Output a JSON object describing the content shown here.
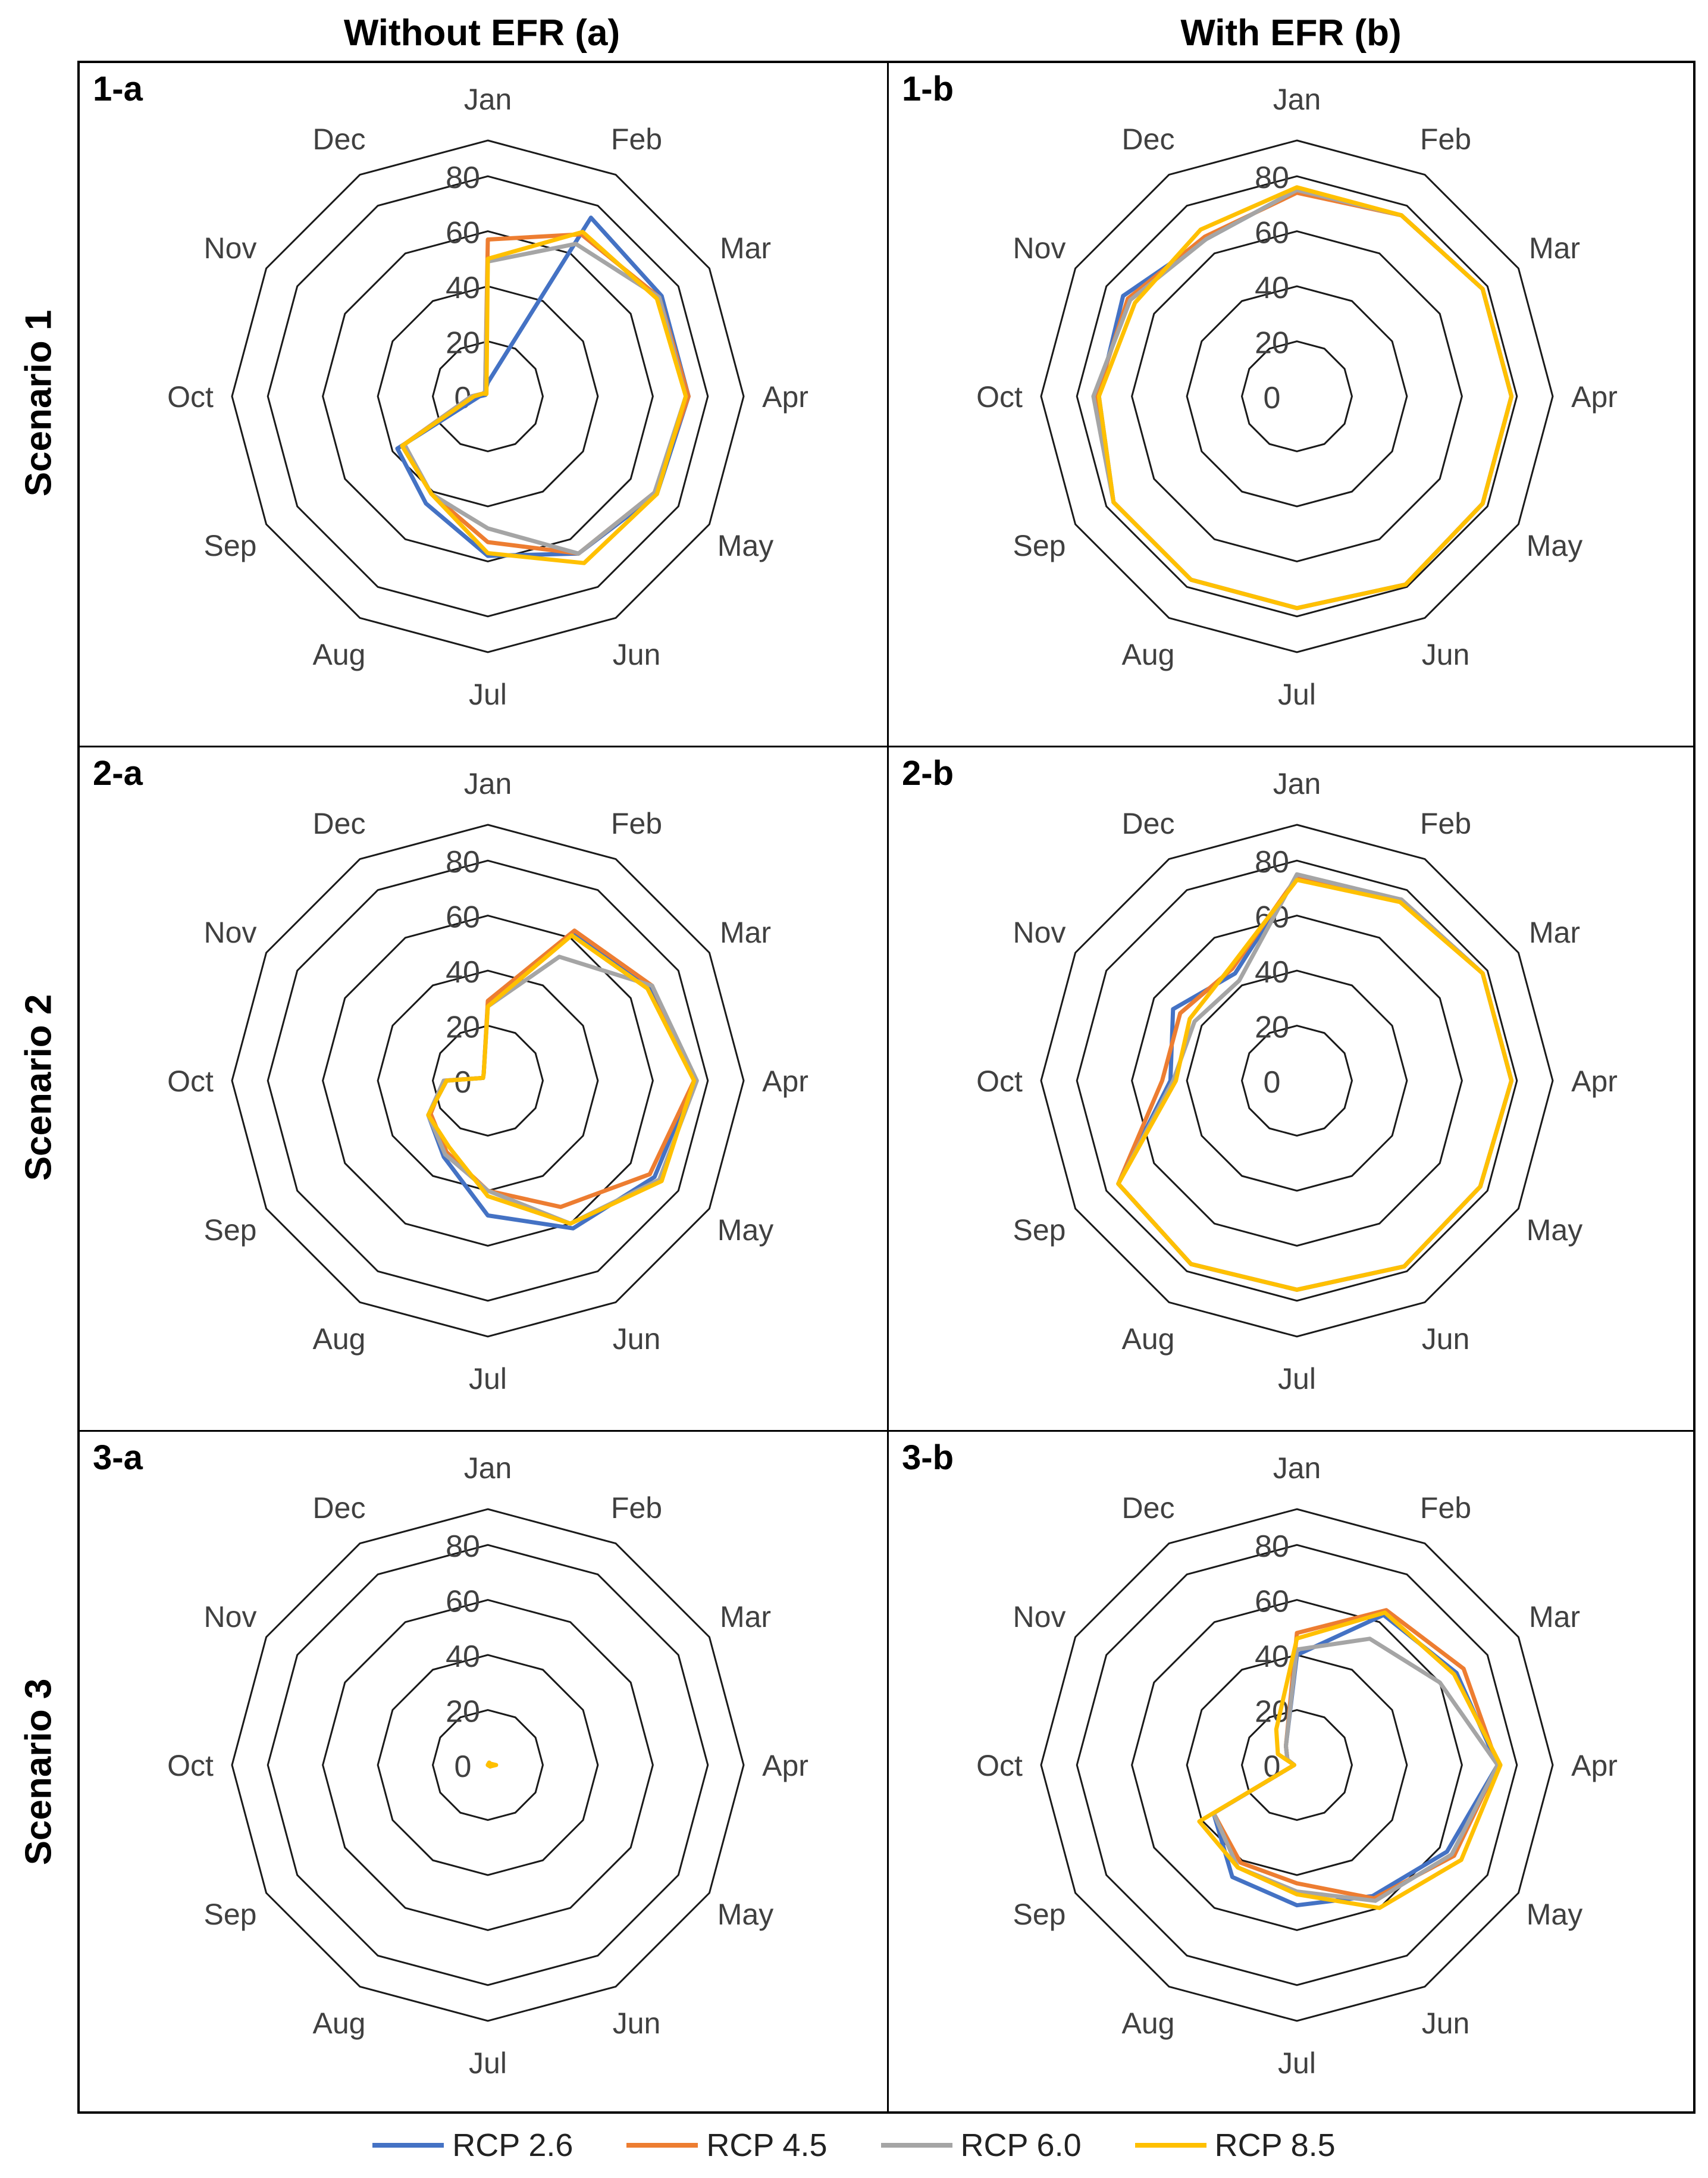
{
  "headers": {
    "col_a": "Without EFR (a)",
    "col_b": "With EFR (b)",
    "rows": [
      "Scenario 1",
      "Scenario 2",
      "Scenario 3"
    ]
  },
  "legend": [
    {
      "name": "RCP 2.6",
      "color": "#4472C4"
    },
    {
      "name": "RCP 4.5",
      "color": "#ED7D31"
    },
    {
      "name": "RCP 6.0",
      "color": "#A5A5A5"
    },
    {
      "name": "RCP 8.5",
      "color": "#FFC000"
    }
  ],
  "chart_data": [
    {
      "panel": "1-a",
      "type": "radar",
      "categories": [
        "Jan",
        "Feb",
        "Mar",
        "Apr",
        "May",
        "Jun",
        "Jul",
        "Aug",
        "Sep",
        "Oct",
        "Nov",
        "Dec"
      ],
      "rlim": [
        0,
        80
      ],
      "ticks": [
        0,
        20,
        40,
        60,
        80
      ],
      "series": [
        {
          "name": "RCP 2.6",
          "values": [
            5,
            75,
            73,
            73,
            71,
            66,
            58,
            45,
            38,
            3,
            1,
            2
          ]
        },
        {
          "name": "RCP 4.5",
          "values": [
            57,
            68,
            72,
            73,
            70,
            66,
            53,
            41,
            36,
            6,
            2,
            2
          ]
        },
        {
          "name": "RCP 6.0",
          "values": [
            49,
            64,
            72,
            72,
            70,
            66,
            48,
            41,
            35,
            6,
            2,
            2
          ]
        },
        {
          "name": "RCP 8.5",
          "values": [
            50,
            69,
            71,
            72,
            71,
            70,
            57,
            41,
            36,
            5,
            2,
            1
          ]
        }
      ]
    },
    {
      "panel": "1-b",
      "type": "radar",
      "categories": [
        "Jan",
        "Feb",
        "Mar",
        "Apr",
        "May",
        "Jun",
        "Jul",
        "Aug",
        "Sep",
        "Oct",
        "Nov",
        "Dec"
      ],
      "rlim": [
        0,
        80
      ],
      "ticks": [
        0,
        20,
        40,
        60,
        80
      ],
      "series": [
        {
          "name": "RCP 2.6",
          "values": [
            75,
            76,
            78,
            78,
            78,
            79,
            77,
            77,
            77,
            72,
            73,
            66
          ]
        },
        {
          "name": "RCP 4.5",
          "values": [
            74,
            76,
            78,
            78,
            78,
            79,
            77,
            77,
            77,
            73,
            71,
            67
          ]
        },
        {
          "name": "RCP 6.0",
          "values": [
            75,
            76,
            78,
            78,
            78,
            79,
            77,
            77,
            77,
            74,
            70,
            66
          ]
        },
        {
          "name": "RCP 8.5",
          "values": [
            76,
            76,
            78,
            78,
            78,
            79,
            77,
            77,
            77,
            72,
            68,
            70
          ]
        }
      ]
    },
    {
      "panel": "2-a",
      "type": "radar",
      "categories": [
        "Jan",
        "Feb",
        "Mar",
        "Apr",
        "May",
        "Jun",
        "Jul",
        "Aug",
        "Sep",
        "Oct",
        "Nov",
        "Dec"
      ],
      "rlim": [
        0,
        80
      ],
      "ticks": [
        0,
        20,
        40,
        60,
        80
      ],
      "series": [
        {
          "name": "RCP 2.6",
          "values": [
            28,
            62,
            68,
            75,
            70,
            62,
            49,
            32,
            25,
            15,
            2,
            3
          ]
        },
        {
          "name": "RCP 4.5",
          "values": [
            29,
            63,
            69,
            75,
            68,
            53,
            40,
            30,
            24,
            16,
            2,
            3
          ]
        },
        {
          "name": "RCP 6.0",
          "values": [
            27,
            52,
            69,
            76,
            72,
            60,
            40,
            31,
            25,
            16,
            2,
            3
          ]
        },
        {
          "name": "RCP 8.5",
          "values": [
            27,
            61,
            67,
            75,
            73,
            60,
            42,
            28,
            25,
            15,
            2,
            3
          ]
        }
      ]
    },
    {
      "panel": "2-b",
      "type": "radar",
      "categories": [
        "Jan",
        "Feb",
        "Mar",
        "Apr",
        "May",
        "Jun",
        "Jul",
        "Aug",
        "Sep",
        "Oct",
        "Nov",
        "Dec"
      ],
      "rlim": [
        0,
        80
      ],
      "ticks": [
        0,
        20,
        40,
        60,
        80
      ],
      "series": [
        {
          "name": "RCP 2.6",
          "values": [
            74,
            76,
            78,
            78,
            77,
            78,
            76,
            77,
            75,
            46,
            52,
            45
          ]
        },
        {
          "name": "RCP 4.5",
          "values": [
            74,
            76,
            78,
            78,
            77,
            78,
            76,
            77,
            75,
            49,
            49,
            47
          ]
        },
        {
          "name": "RCP 6.0",
          "values": [
            75,
            76,
            78,
            78,
            77,
            78,
            76,
            77,
            75,
            45,
            43,
            42
          ]
        },
        {
          "name": "RCP 8.5",
          "values": [
            73,
            75,
            78,
            78,
            77,
            78,
            76,
            77,
            75,
            44,
            45,
            48
          ]
        }
      ]
    },
    {
      "panel": "3-a",
      "type": "radar",
      "categories": [
        "Jan",
        "Feb",
        "Mar",
        "Apr",
        "May",
        "Jun",
        "Jul",
        "Aug",
        "Sep",
        "Oct",
        "Nov",
        "Dec"
      ],
      "rlim": [
        0,
        80
      ],
      "ticks": [
        0,
        20,
        40,
        60,
        80
      ],
      "series": [
        {
          "name": "RCP 2.6",
          "values": [
            0,
            0,
            1,
            1,
            1,
            0,
            0,
            0,
            0,
            0,
            0,
            0
          ]
        },
        {
          "name": "RCP 4.5",
          "values": [
            0,
            1,
            1,
            2,
            1,
            0,
            0,
            0,
            0,
            0,
            0,
            0
          ]
        },
        {
          "name": "RCP 6.0",
          "values": [
            0,
            1,
            1,
            1,
            1,
            0,
            0,
            0,
            0,
            0,
            0,
            0
          ]
        },
        {
          "name": "RCP 8.5",
          "values": [
            0,
            1,
            1,
            3,
            1,
            0,
            0,
            0,
            0,
            0,
            0,
            0
          ]
        }
      ]
    },
    {
      "panel": "3-b",
      "type": "radar",
      "categories": [
        "Jan",
        "Feb",
        "Mar",
        "Apr",
        "May",
        "Jun",
        "Jul",
        "Aug",
        "Sep",
        "Oct",
        "Nov",
        "Dec"
      ],
      "rlim": [
        0,
        80
      ],
      "ticks": [
        0,
        20,
        40,
        60,
        80
      ],
      "series": [
        {
          "name": "RCP 2.6",
          "values": [
            40,
            63,
            67,
            73,
            63,
            55,
            51,
            47,
            35,
            1,
            4,
            8
          ]
        },
        {
          "name": "RCP 4.5",
          "values": [
            48,
            65,
            70,
            73,
            66,
            56,
            43,
            41,
            35,
            1,
            4,
            8
          ]
        },
        {
          "name": "RCP 6.0",
          "values": [
            42,
            53,
            60,
            73,
            65,
            57,
            46,
            43,
            35,
            1,
            4,
            8
          ]
        },
        {
          "name": "RCP 8.5",
          "values": [
            46,
            64,
            66,
            74,
            69,
            60,
            47,
            43,
            41,
            1,
            8,
            15
          ]
        }
      ]
    }
  ]
}
